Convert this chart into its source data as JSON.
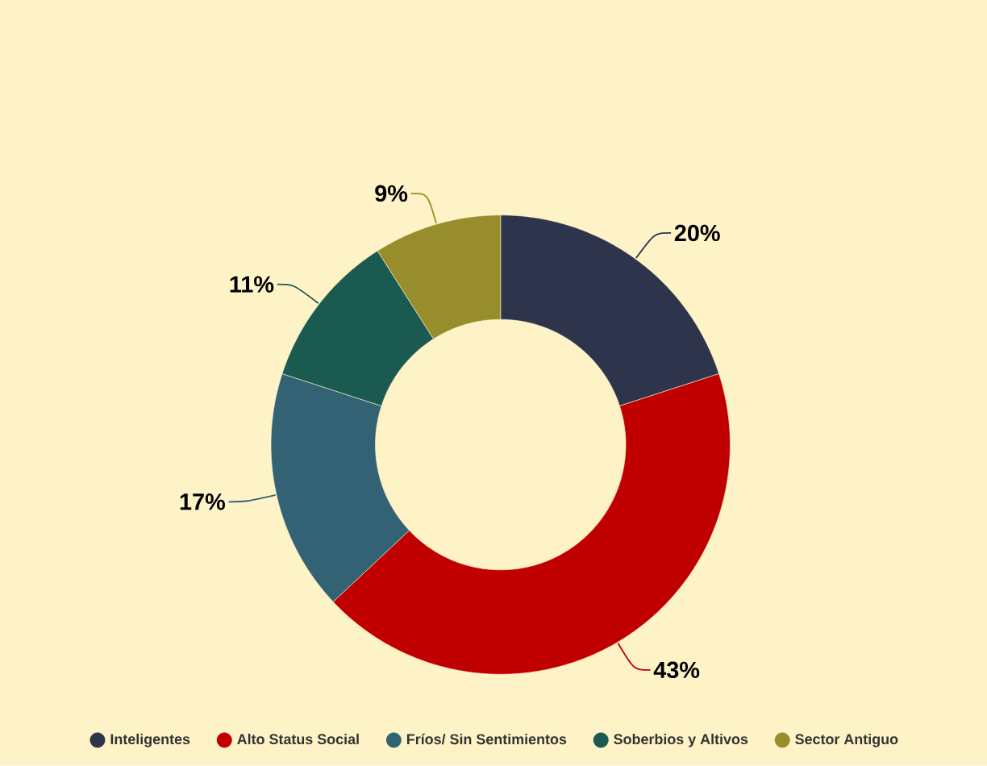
{
  "chart_data": {
    "type": "donut",
    "categories": [
      "Inteligentes",
      "Alto Status Social",
      "Fríos/ Sin Sentimientos",
      "Soberbios y Altivos",
      "Sector Antiguo"
    ],
    "values": [
      20,
      43,
      17,
      11,
      9
    ],
    "colors": [
      "#2d344b",
      "#c00000",
      "#336275",
      "#1b5a50",
      "#978d2c"
    ],
    "value_labels": [
      "20%",
      "43%",
      "17%",
      "11%",
      "9%"
    ],
    "legend": "bottom"
  }
}
